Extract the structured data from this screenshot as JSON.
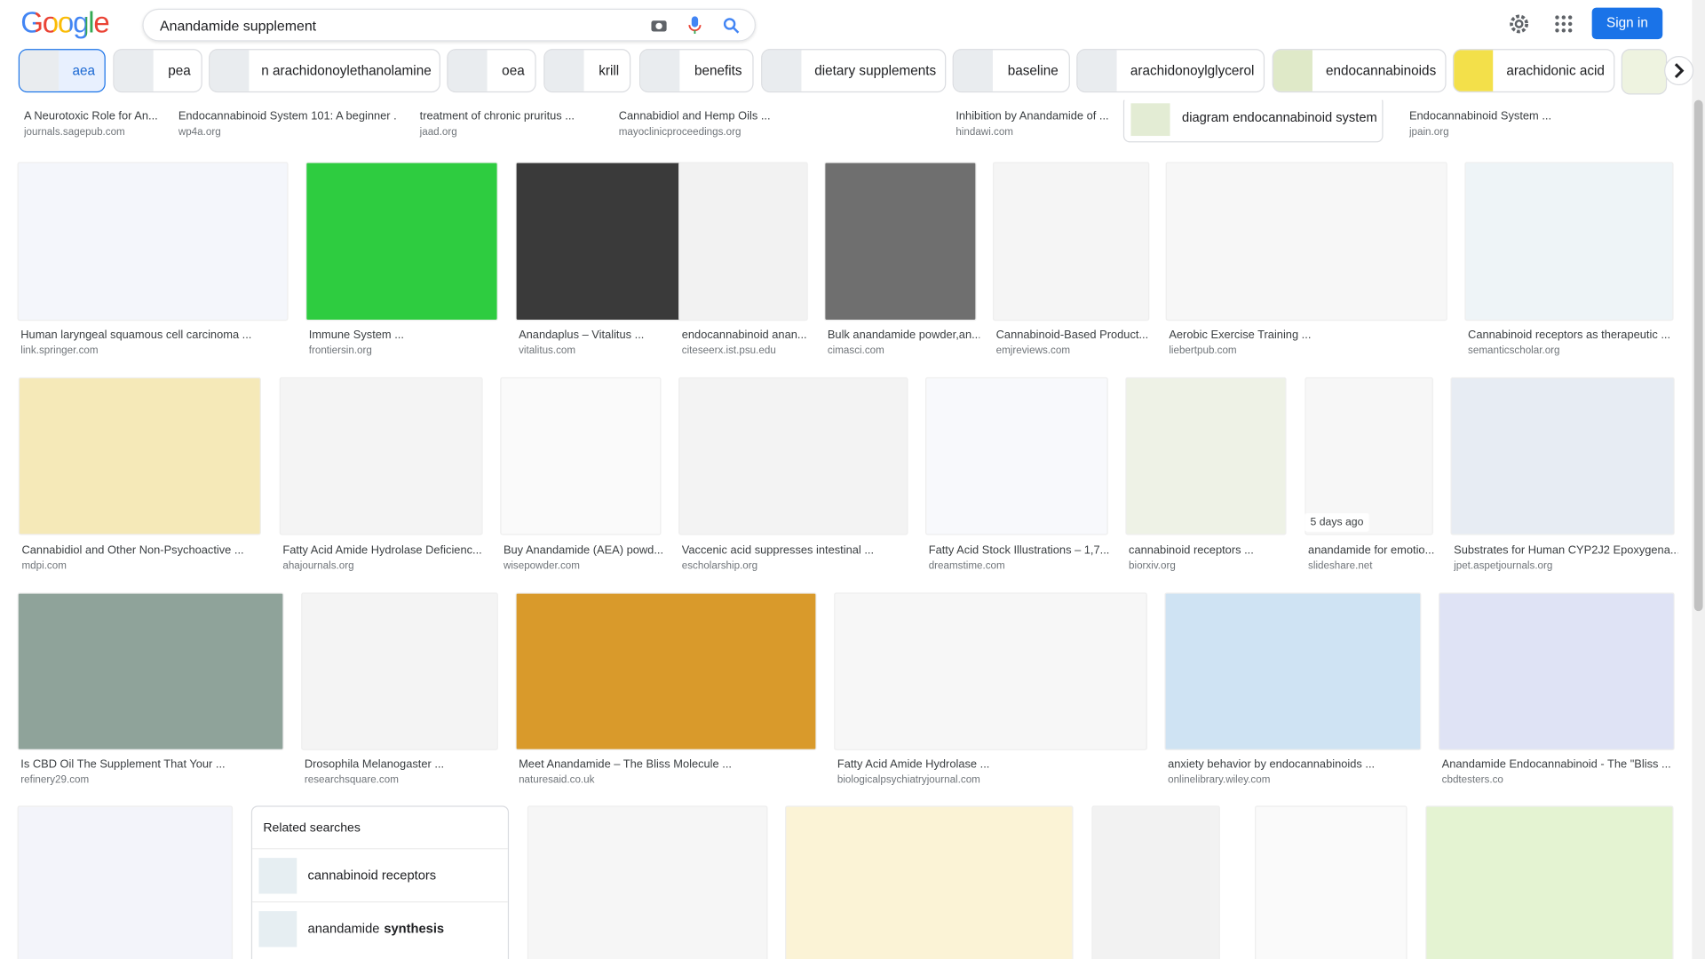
{
  "header": {
    "logo": "Google",
    "search_query": "Anandamide supplement",
    "sign_in": "Sign in"
  },
  "chips": [
    "aea",
    "pea",
    "n arachidonoylethanolamine",
    "oea",
    "krill",
    "benefits",
    "dietary supplements",
    "baseline",
    "arachidonoylglycerol",
    "endocannabinoids",
    "arachidonic acid"
  ],
  "related_chip": "diagram endocannabinoid system",
  "results": [
    {
      "title": "A Neurotoxic Role for An...",
      "source": "journals.sagepub.com"
    },
    {
      "title": "Endocannabinoid System 101: A beginner ...",
      "source": "wp4a.org"
    },
    {
      "title": "treatment of chronic pruritus ...",
      "source": "jaad.org"
    },
    {
      "title": "Cannabidiol and Hemp Oils ...",
      "source": "mayoclinicproceedings.org"
    },
    {
      "title": "Inhibition by Anandamide of ...",
      "source": "hindawi.com"
    },
    {
      "title": "Endocannabinoid System ...",
      "source": "jpain.org"
    },
    {
      "title": "Human laryngeal squamous cell carcinoma ...",
      "source": "link.springer.com"
    },
    {
      "title": "Immune System ...",
      "source": "frontiersin.org"
    },
    {
      "title": "Anandaplus – Vitalitus ...",
      "source": "vitalitus.com"
    },
    {
      "title": "endocannabinoid anan...",
      "source": "citeseerx.ist.psu.edu"
    },
    {
      "title": "Bulk anandamide powder,an...",
      "source": "cimasci.com"
    },
    {
      "title": "Cannabinoid-Based Product...",
      "source": "emjreviews.com"
    },
    {
      "title": "Aerobic Exercise Training ...",
      "source": "liebertpub.com"
    },
    {
      "title": "Cannabinoid receptors as therapeutic ...",
      "source": "semanticscholar.org"
    },
    {
      "title": "Cannabidiol and Other Non-Psychoactive ...",
      "source": "mdpi.com"
    },
    {
      "title": "Fatty Acid Amide Hydrolase Deficienc...",
      "source": "ahajournals.org"
    },
    {
      "title": "Buy Anandamide (AEA) powd...",
      "source": "wisepowder.com"
    },
    {
      "title": "Vaccenic acid suppresses intestinal ...",
      "source": "escholarship.org"
    },
    {
      "title": "Fatty Acid Stock Illustrations – 1,7...",
      "source": "dreamstime.com"
    },
    {
      "title": "cannabinoid receptors ...",
      "source": "biorxiv.org"
    },
    {
      "title": "anandamide for emotio...",
      "source": "slideshare.net",
      "badge": "5 days ago"
    },
    {
      "title": "Substrates for Human CYP2J2 Epoxygena...",
      "source": "jpet.aspetjournals.org"
    },
    {
      "title": "Is CBD Oil The Supplement That Your ...",
      "source": "refinery29.com"
    },
    {
      "title": "Drosophila Melanogaster ...",
      "source": "researchsquare.com"
    },
    {
      "title": "Meet Anandamide – The Bliss Molecule ...",
      "source": "naturesaid.co.uk"
    },
    {
      "title": "Fatty Acid Amide Hydrolase ...",
      "source": "biologicalpsychiatryjournal.com"
    },
    {
      "title": "anxiety behavior by endocannabinoids ...",
      "source": "onlinelibrary.wiley.com"
    },
    {
      "title": "Anandamide Endocannabinoid - The \"Bliss ...",
      "source": "cbdtesters.co"
    }
  ],
  "related_searches": {
    "heading": "Related searches",
    "items": [
      {
        "plain": "cannabinoid receptors"
      },
      {
        "plain": "anandamide",
        "bold": "synthesis"
      }
    ]
  }
}
